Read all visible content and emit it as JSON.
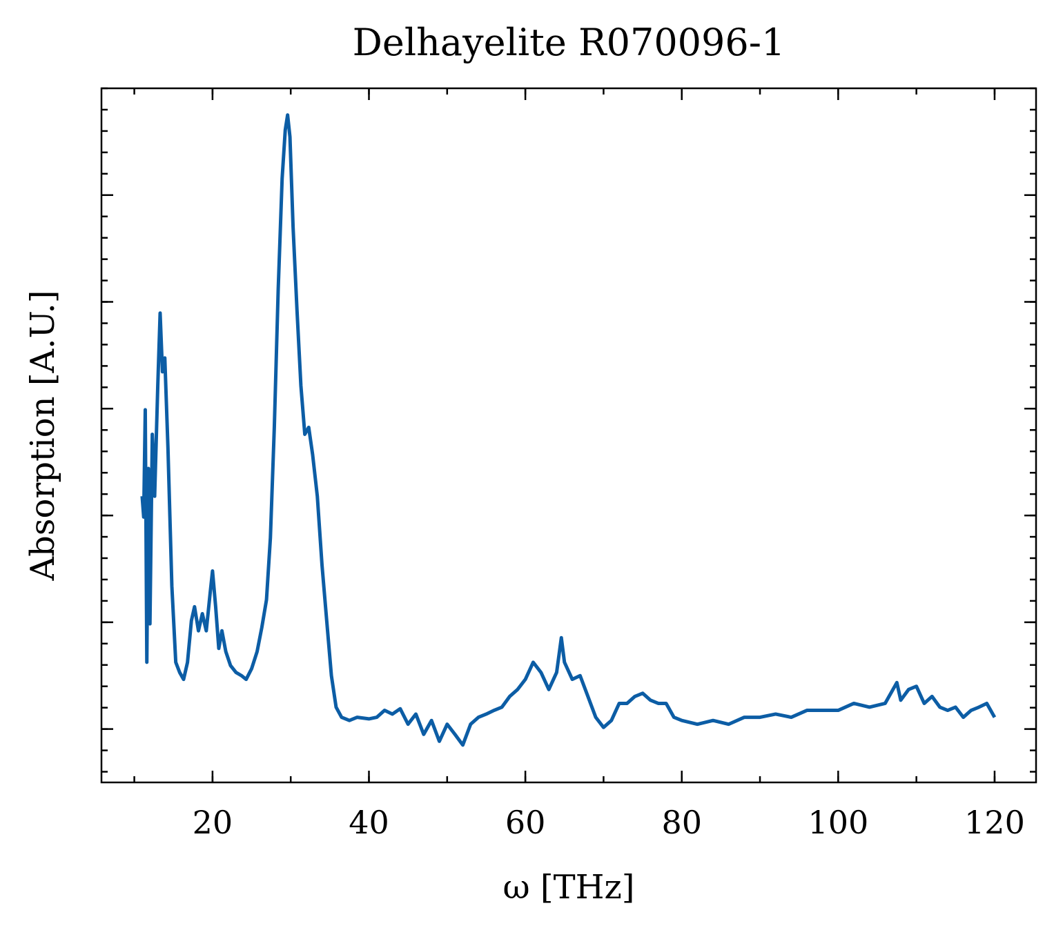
{
  "chart_data": {
    "type": "line",
    "title": "Delhayelite R070096-1",
    "x_label": "ω [THz]",
    "y_label": "Absorption [A.U.]",
    "xlim": [
      5.8,
      125.3
    ],
    "xticks": [
      20,
      40,
      60,
      80,
      100,
      120
    ],
    "ylim": [
      -0.1,
      1.2
    ],
    "yticks": [
      0,
      0.2,
      0.4,
      0.6,
      0.8,
      1.0
    ],
    "ytick_labels": false,
    "series": [
      {
        "color": "#0c5da5",
        "x": [
          11,
          11.2,
          11.4,
          11.6,
          11.8,
          12,
          12.3,
          12.6,
          13,
          13.3,
          13.6,
          13.9,
          14.3,
          14.8,
          15.3,
          15.8,
          16.3,
          16.8,
          17.3,
          17.7,
          18.2,
          18.7,
          19.2,
          19.7,
          20,
          20.4,
          20.8,
          21.2,
          21.7,
          22.3,
          23,
          23.7,
          24.3,
          25,
          25.7,
          26.3,
          26.9,
          27.4,
          27.9,
          28.4,
          28.9,
          29.3,
          29.6,
          29.9,
          30.3,
          30.8,
          31.3,
          31.8,
          32.3,
          32.8,
          33.4,
          34,
          34.6,
          35.2,
          35.8,
          36.5,
          37.5,
          38.5,
          40,
          41,
          42,
          43,
          44,
          45,
          46,
          47,
          48,
          49,
          50,
          51,
          52,
          53,
          54,
          55,
          56,
          57,
          58,
          59,
          60,
          61,
          62,
          63,
          64,
          64.6,
          65,
          66,
          67,
          68,
          69,
          70,
          71,
          72,
          73,
          74,
          75,
          76,
          77,
          78,
          79,
          80,
          82,
          84,
          86,
          88,
          90,
          92,
          94,
          96,
          98,
          100,
          102,
          104,
          106,
          107.5,
          108,
          109,
          110,
          111,
          112,
          113,
          114,
          115,
          116,
          117,
          118,
          119,
          120
        ],
        "values": [
          0.436,
          0.397,
          0.598,
          0.125,
          0.488,
          0.197,
          0.552,
          0.436,
          0.643,
          0.779,
          0.669,
          0.695,
          0.527,
          0.268,
          0.125,
          0.106,
          0.093,
          0.125,
          0.203,
          0.229,
          0.184,
          0.216,
          0.184,
          0.255,
          0.296,
          0.229,
          0.151,
          0.184,
          0.145,
          0.119,
          0.106,
          0.1,
          0.093,
          0.113,
          0.145,
          0.19,
          0.242,
          0.358,
          0.565,
          0.824,
          1.031,
          1.122,
          1.15,
          1.109,
          0.94,
          0.785,
          0.643,
          0.552,
          0.565,
          0.514,
          0.436,
          0.307,
          0.203,
          0.1,
          0.041,
          0.022,
          0.016,
          0.022,
          0.019,
          0.022,
          0.035,
          0.028,
          0.038,
          0.009,
          0.028,
          -0.01,
          0.016,
          -0.023,
          0.009,
          -0.01,
          -0.03,
          0.009,
          0.022,
          0.028,
          0.035,
          0.041,
          0.061,
          0.074,
          0.093,
          0.125,
          0.106,
          0.074,
          0.106,
          0.171,
          0.125,
          0.093,
          0.1,
          0.061,
          0.022,
          0.003,
          0.016,
          0.048,
          0.048,
          0.061,
          0.067,
          0.054,
          0.048,
          0.048,
          0.022,
          0.016,
          0.009,
          0.016,
          0.009,
          0.022,
          0.022,
          0.028,
          0.022,
          0.035,
          0.035,
          0.035,
          0.048,
          0.041,
          0.048,
          0.087,
          0.054,
          0.074,
          0.08,
          0.048,
          0.061,
          0.041,
          0.035,
          0.041,
          0.022,
          0.035,
          0.041,
          0.048,
          0.022
        ]
      }
    ]
  }
}
